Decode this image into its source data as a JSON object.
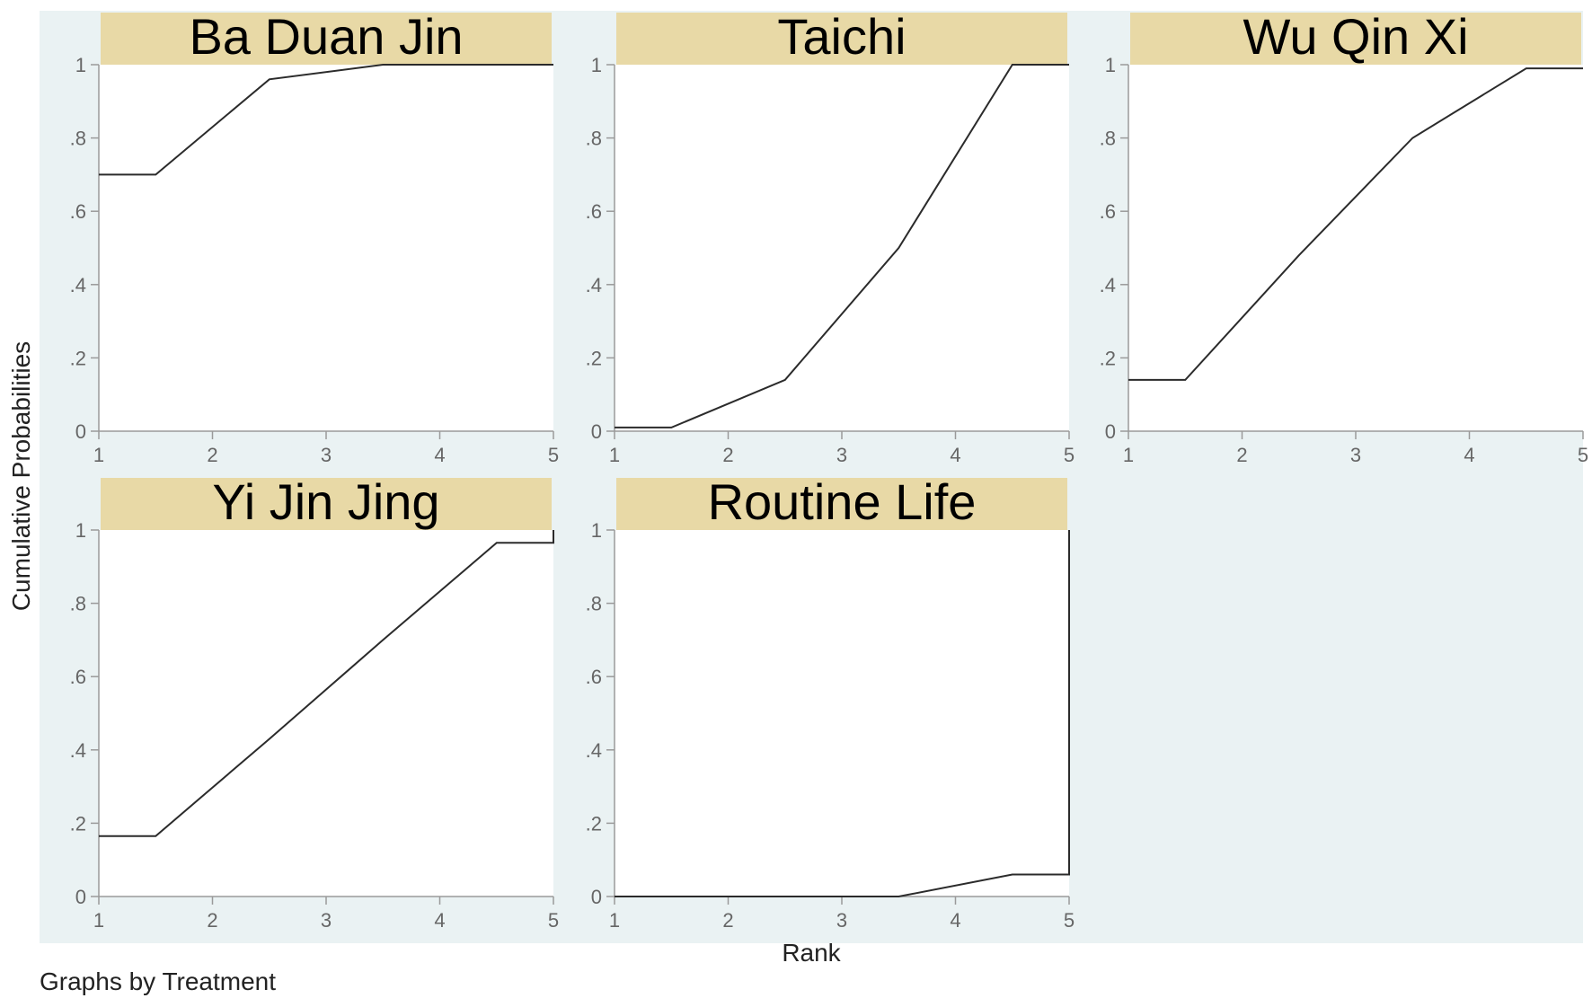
{
  "chart_data": {
    "type": "line",
    "layout": "small-multiples 3x2",
    "ylabel": "Cumulative Probabilities",
    "xlabel": "Rank",
    "note": "Graphs by Treatment",
    "xlim": [
      1,
      5
    ],
    "ylim": [
      0,
      1
    ],
    "xticks": [
      "1",
      "2",
      "3",
      "4",
      "5"
    ],
    "yticks": [
      "0",
      ".2",
      ".4",
      ".6",
      ".8",
      "1"
    ],
    "grid": false,
    "colors": {
      "outer_background": "#eaf2f3",
      "plot_background": "#ffffff",
      "title_strip": "#e8d9a6",
      "line": "#2b2b2b",
      "axis": "#9a9a9a"
    },
    "panels": [
      {
        "title": "Ba Duan Jin",
        "series": [
          {
            "x": [
              1,
              1.5,
              2.5,
              3.5,
              4.5,
              5
            ],
            "y": [
              0.7,
              0.7,
              0.96,
              1.0,
              1.0,
              1.0
            ]
          }
        ]
      },
      {
        "title": "Taichi",
        "series": [
          {
            "x": [
              1,
              1.5,
              2.5,
              3.5,
              4.5,
              5
            ],
            "y": [
              0.01,
              0.01,
              0.14,
              0.5,
              1.0,
              1.0
            ]
          }
        ]
      },
      {
        "title": "Wu Qin Xi",
        "series": [
          {
            "x": [
              1,
              1.5,
              2.5,
              3.5,
              4.5,
              5
            ],
            "y": [
              0.14,
              0.14,
              0.48,
              0.8,
              0.99,
              0.99
            ]
          }
        ]
      },
      {
        "title": "Yi Jin Jing",
        "series": [
          {
            "x": [
              1,
              1.5,
              2.5,
              3.5,
              4.5,
              5,
              5
            ],
            "y": [
              0.165,
              0.165,
              0.43,
              0.7,
              0.965,
              0.965,
              1.0
            ]
          }
        ]
      },
      {
        "title": "Routine Life",
        "series": [
          {
            "x": [
              1,
              1.5,
              2.5,
              3.5,
              4.5,
              5,
              5
            ],
            "y": [
              0.0,
              0.0,
              0.0,
              0.0,
              0.06,
              0.06,
              1.0
            ]
          }
        ]
      }
    ]
  }
}
